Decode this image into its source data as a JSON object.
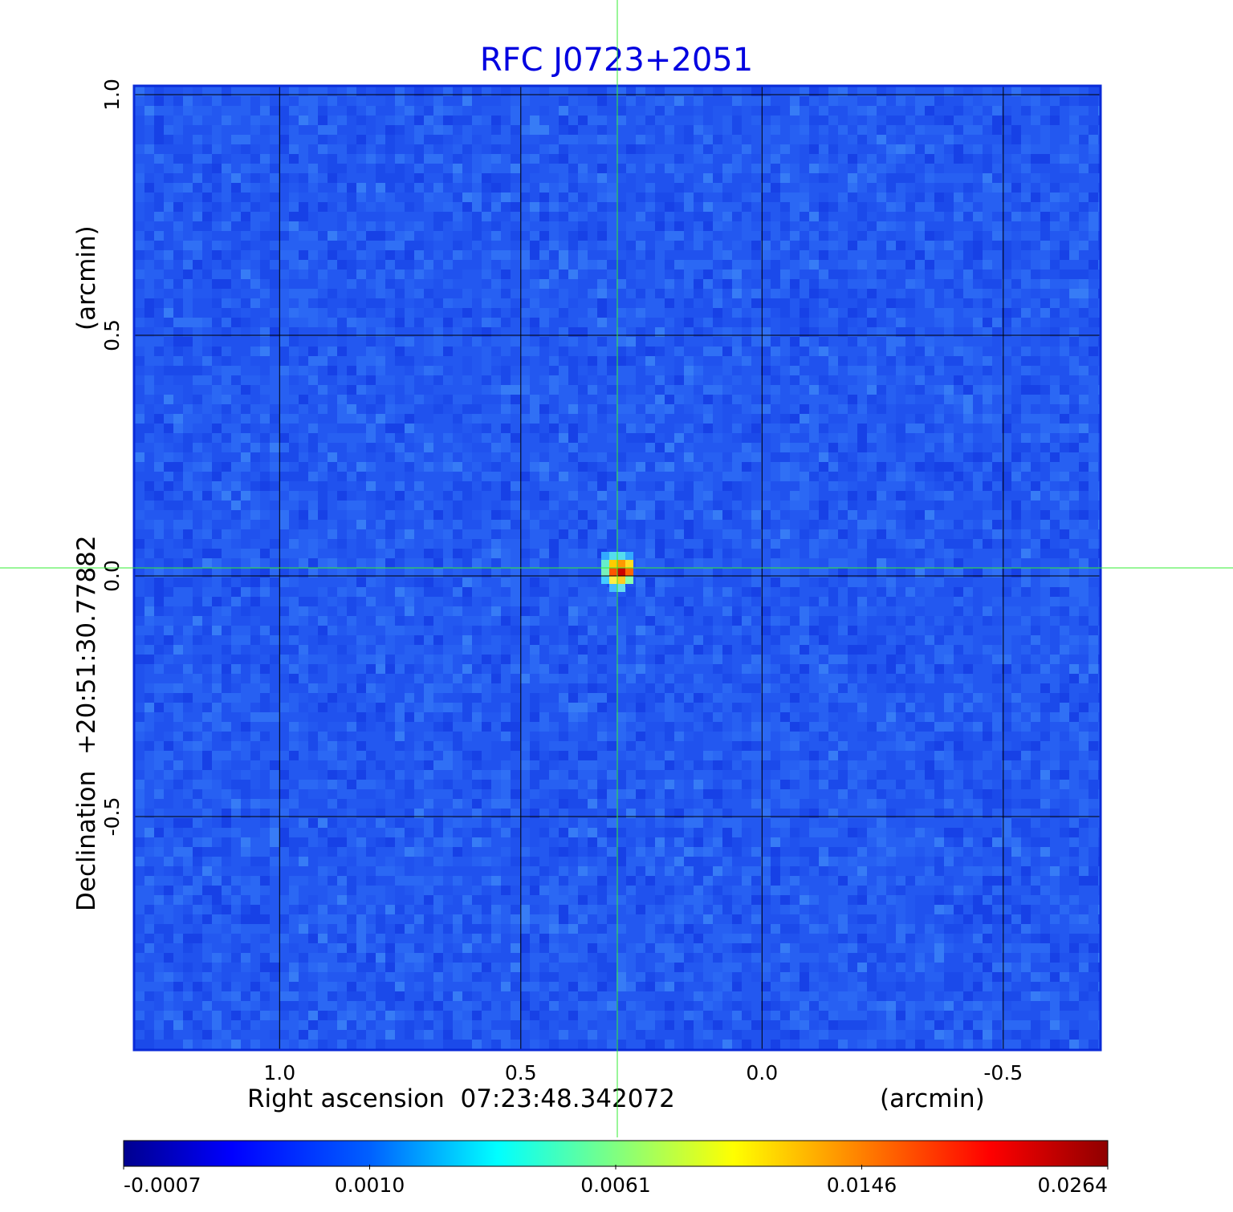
{
  "chart_data": {
    "type": "heatmap",
    "title": "RFC J0723+2051",
    "xlabel": "Right ascension  07:23:48.342072",
    "xunit": "(arcmin)",
    "ylabel": "Declination  +20:51:30.77882",
    "yunit": "(arcmin)",
    "x_ticks": [
      "1.0",
      "0.5",
      "0.0",
      "-0.5"
    ],
    "x_tick_values": [
      1.0,
      0.5,
      0.0,
      -0.5
    ],
    "y_ticks": [
      "1.0",
      "0.5",
      "0.0",
      "-0.5"
    ],
    "y_tick_values": [
      1.0,
      0.5,
      0.0,
      -0.5
    ],
    "xlim": [
      1.3,
      -0.7
    ],
    "ylim": [
      -1.0,
      1.0
    ],
    "grid": true,
    "crosshair": [
      0.3,
      0.0
    ],
    "source": {
      "x": 0.3,
      "y": 0.0,
      "peak": 0.0264
    },
    "colorbar": {
      "ticks": [
        "-0.0007",
        "0.0010",
        "0.0061",
        "0.0146",
        "0.0264"
      ],
      "values": [
        -0.0007,
        0.001,
        0.0061,
        0.0146,
        0.0264
      ],
      "colormap": "jet"
    },
    "colors": {
      "background": "#2255f0",
      "title": "#0000e0",
      "crosshair": "#33ee33",
      "grid": "#000000"
    }
  }
}
